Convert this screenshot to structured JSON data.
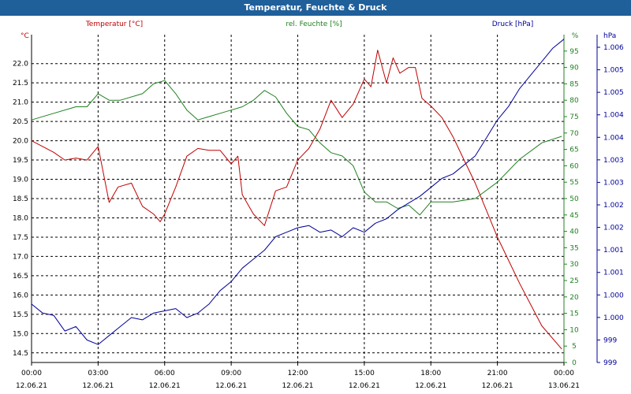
{
  "title": "Temperatur, Feuchte & Druck",
  "colors": {
    "temp": "#c00000",
    "hum": "#208020",
    "press": "#000099",
    "titlebar": "#1f5f9a"
  },
  "chart_data": {
    "type": "line",
    "title": "Temperatur, Feuchte & Druck",
    "x_ticks": [
      {
        "time": "00:00",
        "date": "12.06.21"
      },
      {
        "time": "03:00",
        "date": "12.06.21"
      },
      {
        "time": "06:00",
        "date": "12.06.21"
      },
      {
        "time": "09:00",
        "date": "12.06.21"
      },
      {
        "time": "12:00",
        "date": "12.06.21"
      },
      {
        "time": "15:00",
        "date": "12.06.21"
      },
      {
        "time": "18:00",
        "date": "12.06.21"
      },
      {
        "time": "21:00",
        "date": "12.06.21"
      },
      {
        "time": "00:00",
        "date": "13.06.21"
      }
    ],
    "grid": true,
    "axes": {
      "temp": {
        "label": "Temperatur [°C]",
        "unit": "°C",
        "range": [
          14.25,
          22.75
        ],
        "ticks": [
          "22.0",
          "21.5",
          "21.0",
          "20.5",
          "20.0",
          "19.5",
          "19.0",
          "18.5",
          "18.0",
          "17.5",
          "17.0",
          "16.5",
          "16.0",
          "15.5",
          "15.0",
          "14.5"
        ]
      },
      "hum": {
        "label": "rel. Feuchte [%]",
        "unit": "%",
        "range": [
          0,
          100
        ],
        "ticks": [
          "95",
          "90",
          "85",
          "80",
          "75",
          "70",
          "65",
          "60",
          "55",
          "50",
          "45",
          "40",
          "35",
          "30",
          "25",
          "20",
          "15",
          "10",
          "5",
          "0"
        ]
      },
      "press": {
        "label": "Druck [hPa]",
        "unit": "hPa",
        "range": [
          998.8,
          1006.1
        ],
        "ticks": [
          "1.006",
          "1.005",
          "1.005",
          "1.004",
          "1.004",
          "1.003",
          "1.003",
          "1.002",
          "1.002",
          "1.001",
          "1.001",
          "1.000",
          "1.000",
          "999",
          "999"
        ]
      }
    },
    "series": [
      {
        "name": "Temperatur [°C]",
        "axis": "temp",
        "x_hours": [
          0,
          1,
          1.5,
          2,
          2.5,
          3,
          3.5,
          3.9,
          4.5,
          5,
          5.5,
          5.8,
          6,
          6.5,
          7,
          7.5,
          8,
          8.5,
          9,
          9.3,
          9.5,
          10,
          10.5,
          11,
          11.5,
          12,
          12.5,
          13,
          13.5,
          14,
          14.5,
          15,
          15.3,
          15.6,
          16,
          16.3,
          16.6,
          17,
          17.3,
          17.6,
          18,
          18.5,
          19,
          19.5,
          20,
          21,
          22,
          23,
          23.9
        ],
        "values": [
          20.0,
          19.7,
          19.5,
          19.55,
          19.5,
          19.85,
          18.4,
          18.8,
          18.9,
          18.3,
          18.1,
          17.9,
          18.1,
          18.8,
          19.6,
          19.8,
          19.75,
          19.75,
          19.4,
          19.6,
          18.6,
          18.1,
          17.8,
          18.7,
          18.8,
          19.5,
          19.8,
          20.3,
          21.05,
          20.6,
          20.95,
          21.6,
          21.4,
          22.35,
          21.5,
          22.15,
          21.75,
          21.9,
          21.9,
          21.1,
          20.9,
          20.6,
          20.1,
          19.5,
          18.9,
          17.5,
          16.3,
          15.2,
          14.6
        ]
      },
      {
        "name": "rel. Feuchte [%]",
        "axis": "hum",
        "x_hours": [
          0,
          1,
          2,
          2.5,
          3,
          3.5,
          4,
          5,
          5.5,
          6,
          6.5,
          7,
          7.5,
          8,
          8.5,
          9,
          9.5,
          10,
          10.5,
          11,
          11.5,
          12,
          12.5,
          13,
          13.5,
          14,
          14.5,
          15,
          15.5,
          16,
          16.5,
          17,
          17.5,
          18,
          19,
          20,
          21,
          22,
          23,
          23.9
        ],
        "values": [
          74,
          76,
          78,
          78,
          82,
          80,
          80,
          82,
          85,
          86,
          82,
          77,
          74,
          75,
          76,
          77,
          78,
          80,
          83,
          81,
          76,
          72,
          71,
          67,
          64,
          63,
          60,
          52,
          49,
          49,
          47,
          48,
          45,
          49,
          49,
          50,
          55,
          62,
          67,
          69
        ]
      },
      {
        "name": "Druck [hPa]",
        "axis": "press",
        "x_hours": [
          0,
          0.5,
          1,
          1.5,
          2,
          2.5,
          3,
          3.5,
          4,
          4.5,
          5,
          5.5,
          6,
          6.5,
          7,
          7.5,
          8,
          8.5,
          9,
          9.5,
          10,
          10.5,
          11,
          11.5,
          12,
          12.5,
          13,
          13.5,
          14,
          14.5,
          15,
          15.5,
          16,
          16.5,
          17,
          17.5,
          18,
          18.5,
          19,
          19.5,
          20,
          20.5,
          21,
          21.5,
          22,
          22.5,
          23,
          23.5,
          24
        ],
        "values": [
          1000.1,
          999.9,
          999.85,
          999.5,
          999.6,
          999.3,
          999.2,
          999.4,
          999.6,
          999.8,
          999.75,
          999.9,
          999.95,
          1000.0,
          999.8,
          999.9,
          1000.1,
          1000.4,
          1000.6,
          1000.9,
          1001.1,
          1001.3,
          1001.6,
          1001.7,
          1001.8,
          1001.85,
          1001.7,
          1001.75,
          1001.6,
          1001.8,
          1001.7,
          1001.9,
          1002.0,
          1002.2,
          1002.35,
          1002.5,
          1002.7,
          1002.9,
          1003.0,
          1003.2,
          1003.4,
          1003.8,
          1004.2,
          1004.5,
          1004.9,
          1005.2,
          1005.5,
          1005.8,
          1006.0
        ]
      }
    ]
  }
}
